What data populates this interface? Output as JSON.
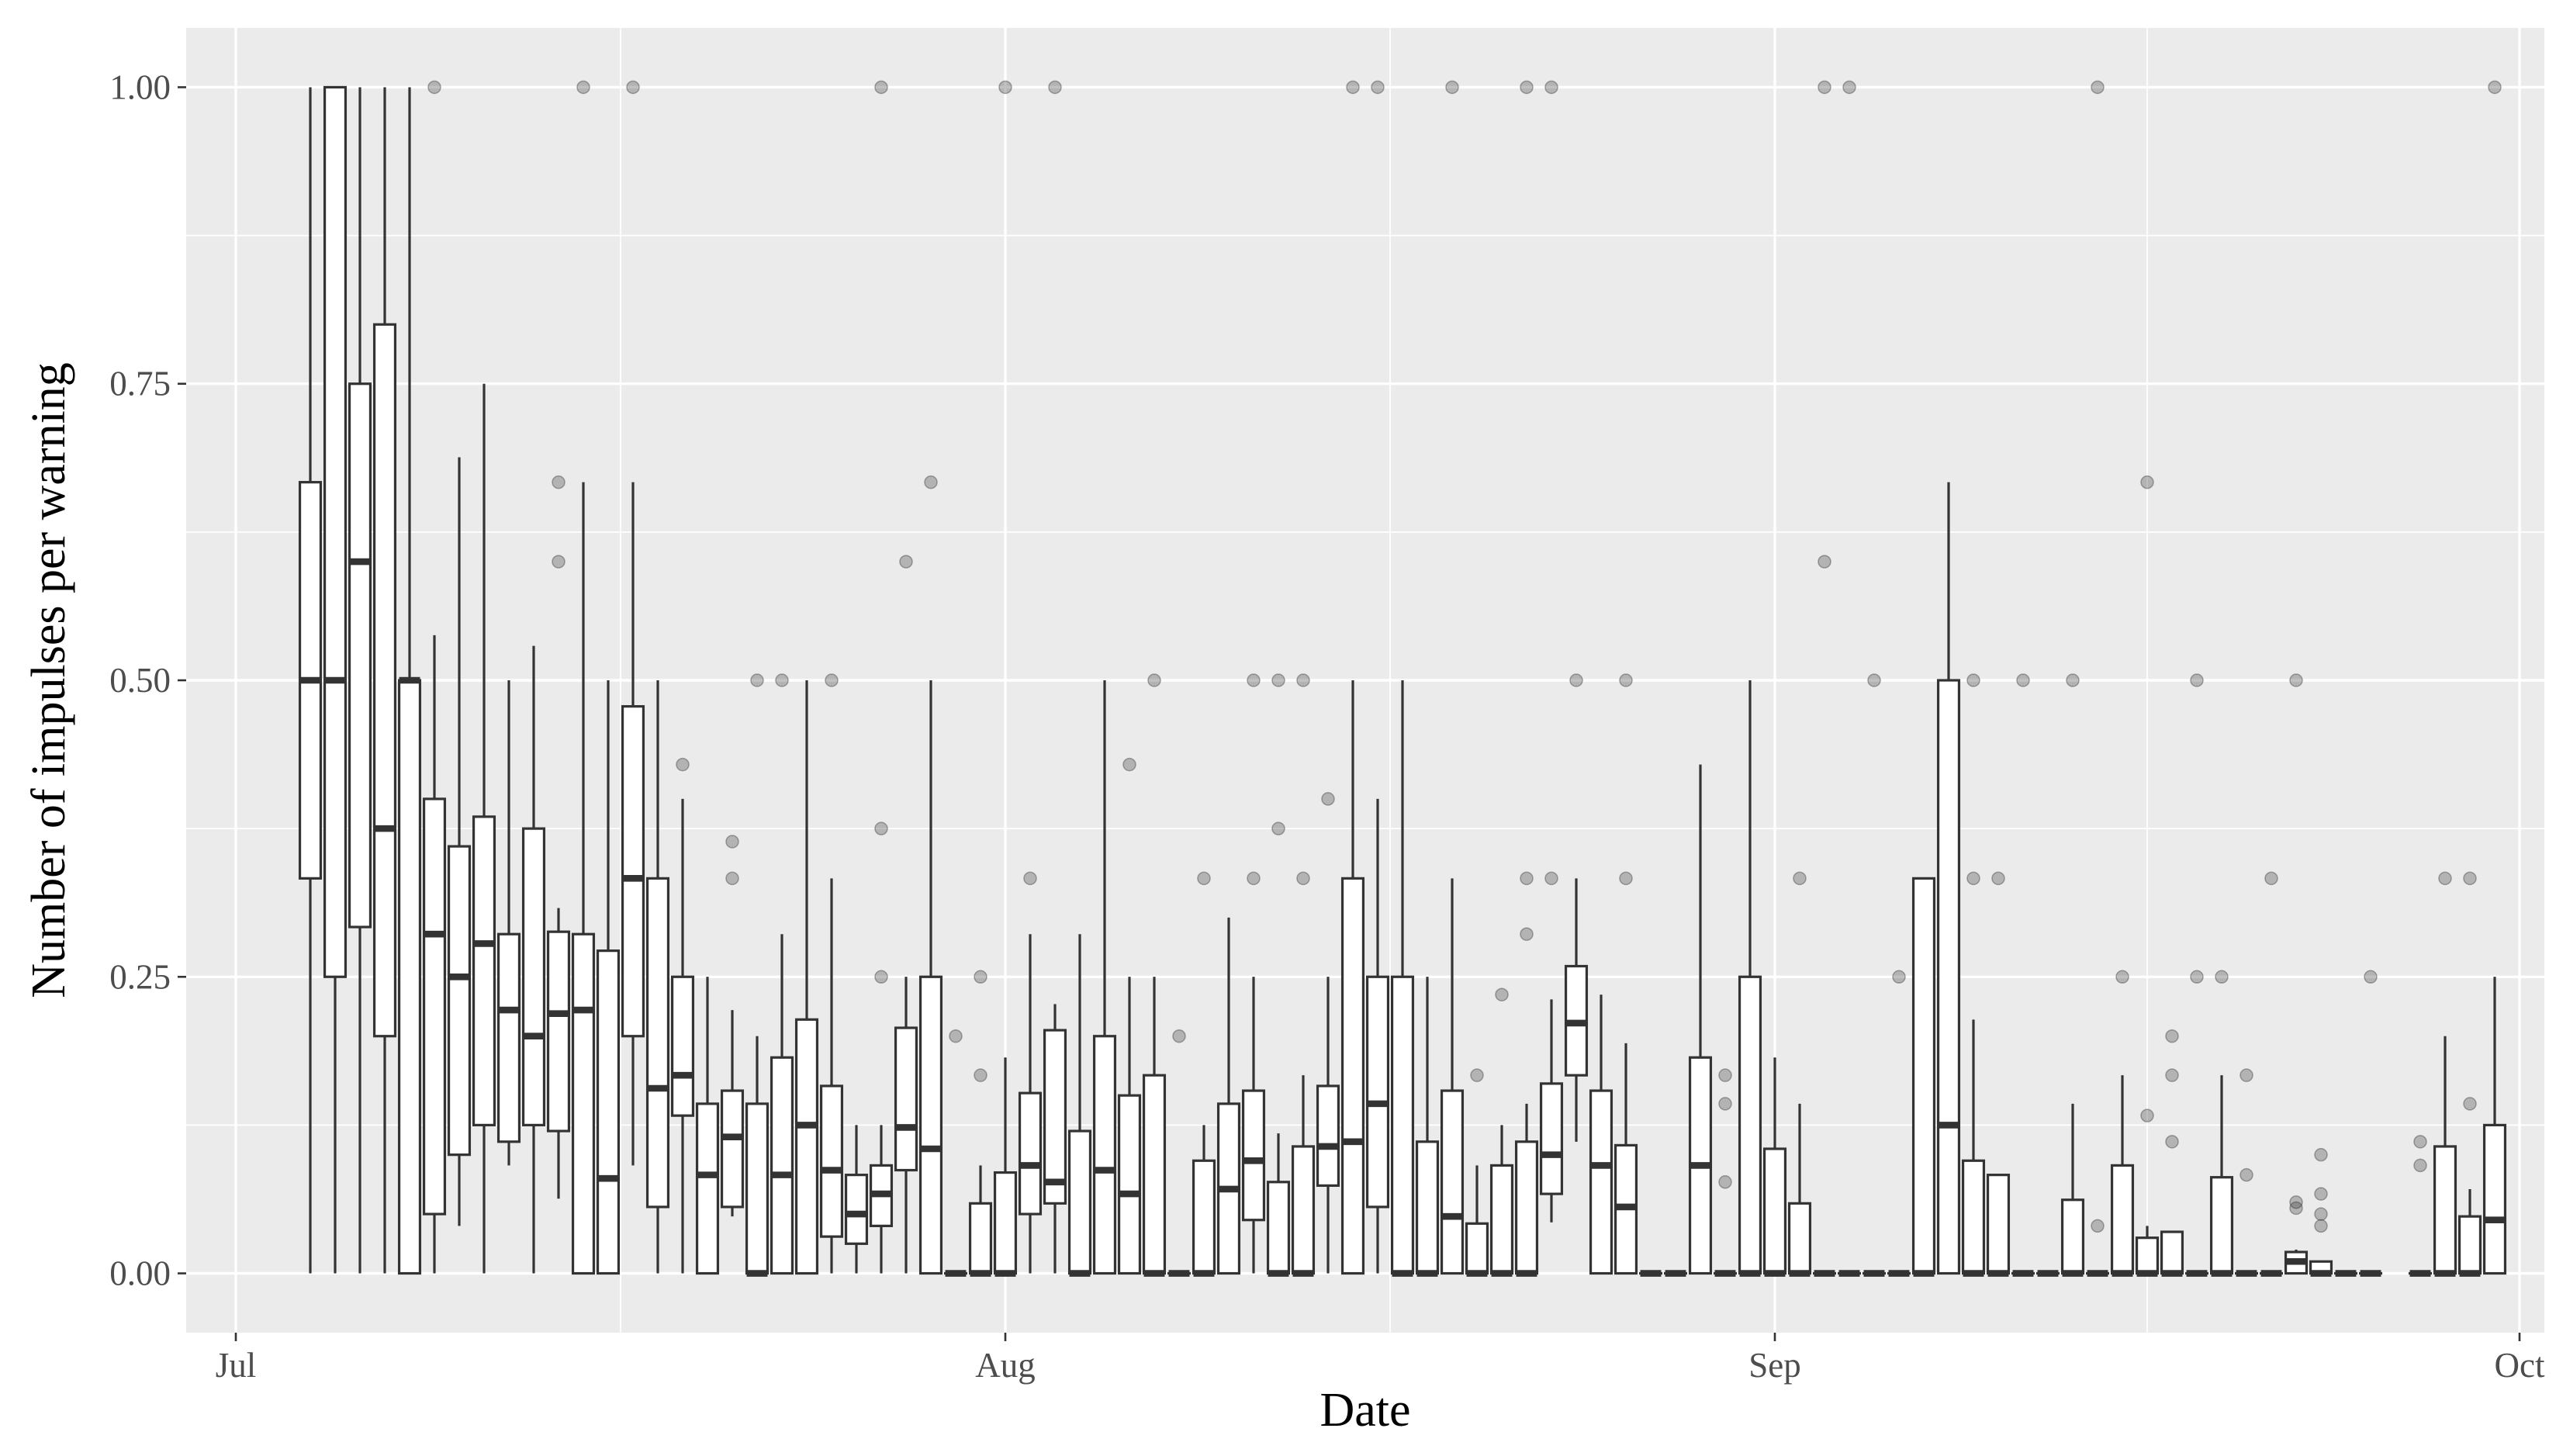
{
  "chart_data": {
    "type": "box",
    "xlabel": "Date",
    "ylabel": "Number of impulses per warning",
    "x_tick_labels": [
      "Jul",
      "Aug",
      "Sep",
      "Oct"
    ],
    "x_tick_dates": [
      "2020-07-01",
      "2020-08-01",
      "2020-09-01",
      "2020-10-01"
    ],
    "xlim": [
      "2020-06-29",
      "2020-10-02"
    ],
    "y_tick_labels": [
      "0.00",
      "0.25",
      "0.50",
      "0.75",
      "1.00"
    ],
    "y_ticks": [
      0,
      0.25,
      0.5,
      0.75,
      1.0
    ],
    "ylim": [
      -0.05,
      1.05
    ],
    "grid": true,
    "boxes": [
      {
        "date": "2020-07-04",
        "min": 0,
        "q1": 0.333,
        "median": 0.5,
        "q3": 0.667,
        "max": 1.0,
        "outliers": []
      },
      {
        "date": "2020-07-05",
        "min": 0,
        "q1": 0.25,
        "median": 0.5,
        "q3": 1.0,
        "max": 1.0,
        "outliers": []
      },
      {
        "date": "2020-07-06",
        "min": 0,
        "q1": 0.292,
        "median": 0.6,
        "q3": 0.75,
        "max": 1.0,
        "outliers": []
      },
      {
        "date": "2020-07-07",
        "min": 0,
        "q1": 0.2,
        "median": 0.375,
        "q3": 0.8,
        "max": 1.0,
        "outliers": []
      },
      {
        "date": "2020-07-08",
        "min": 0,
        "q1": 0,
        "median": 0.5,
        "q3": 0.5,
        "max": 1.0,
        "outliers": []
      },
      {
        "date": "2020-07-09",
        "min": 0,
        "q1": 0.05,
        "median": 0.286,
        "q3": 0.4,
        "max": 0.538,
        "outliers": [
          1.0
        ]
      },
      {
        "date": "2020-07-10",
        "min": 0.04,
        "q1": 0.1,
        "median": 0.25,
        "q3": 0.36,
        "max": 0.688,
        "outliers": []
      },
      {
        "date": "2020-07-11",
        "min": 0,
        "q1": 0.125,
        "median": 0.278,
        "q3": 0.385,
        "max": 0.75,
        "outliers": []
      },
      {
        "date": "2020-07-12",
        "min": 0.091,
        "q1": 0.111,
        "median": 0.222,
        "q3": 0.286,
        "max": 0.5,
        "outliers": []
      },
      {
        "date": "2020-07-13",
        "min": 0,
        "q1": 0.125,
        "median": 0.2,
        "q3": 0.375,
        "max": 0.529,
        "outliers": []
      },
      {
        "date": "2020-07-14",
        "min": 0.063,
        "q1": 0.12,
        "median": 0.219,
        "q3": 0.288,
        "max": 0.308,
        "outliers": [
          0.6,
          0.667
        ]
      },
      {
        "date": "2020-07-15",
        "min": 0,
        "q1": 0,
        "median": 0.222,
        "q3": 0.286,
        "max": 0.667,
        "outliers": [
          1.0
        ]
      },
      {
        "date": "2020-07-16",
        "min": 0,
        "q1": 0,
        "median": 0.08,
        "q3": 0.272,
        "max": 0.5,
        "outliers": []
      },
      {
        "date": "2020-07-17",
        "min": 0.091,
        "q1": 0.2,
        "median": 0.333,
        "q3": 0.478,
        "max": 0.667,
        "outliers": [
          1.0
        ]
      },
      {
        "date": "2020-07-18",
        "min": 0,
        "q1": 0.056,
        "median": 0.156,
        "q3": 0.333,
        "max": 0.5,
        "outliers": []
      },
      {
        "date": "2020-07-19",
        "min": 0,
        "q1": 0.133,
        "median": 0.167,
        "q3": 0.25,
        "max": 0.4,
        "outliers": [
          0.429
        ]
      },
      {
        "date": "2020-07-20",
        "min": 0,
        "q1": 0,
        "median": 0.083,
        "q3": 0.143,
        "max": 0.25,
        "outliers": []
      },
      {
        "date": "2020-07-21",
        "min": 0.048,
        "q1": 0.056,
        "median": 0.115,
        "q3": 0.154,
        "max": 0.222,
        "outliers": [
          0.333,
          0.364
        ]
      },
      {
        "date": "2020-07-22",
        "min": 0,
        "q1": 0,
        "median": 0,
        "q3": 0.143,
        "max": 0.2,
        "outliers": [
          0.5
        ]
      },
      {
        "date": "2020-07-23",
        "min": 0,
        "q1": 0,
        "median": 0.083,
        "q3": 0.182,
        "max": 0.286,
        "outliers": [
          0.5
        ]
      },
      {
        "date": "2020-07-24",
        "min": 0,
        "q1": 0,
        "median": 0.125,
        "q3": 0.214,
        "max": 0.5,
        "outliers": []
      },
      {
        "date": "2020-07-25",
        "min": 0,
        "q1": 0.031,
        "median": 0.087,
        "q3": 0.158,
        "max": 0.333,
        "outliers": [
          0.5
        ]
      },
      {
        "date": "2020-07-26",
        "min": 0,
        "q1": 0.025,
        "median": 0.05,
        "q3": 0.083,
        "max": 0.125,
        "outliers": []
      },
      {
        "date": "2020-07-27",
        "min": 0,
        "q1": 0.04,
        "median": 0.067,
        "q3": 0.091,
        "max": 0.125,
        "outliers": [
          0.25,
          0.375,
          1.0
        ]
      },
      {
        "date": "2020-07-28",
        "min": 0,
        "q1": 0.087,
        "median": 0.123,
        "q3": 0.207,
        "max": 0.25,
        "outliers": [
          0.6
        ]
      },
      {
        "date": "2020-07-29",
        "min": 0,
        "q1": 0,
        "median": 0.105,
        "q3": 0.25,
        "max": 0.5,
        "outliers": [
          0.667
        ]
      },
      {
        "date": "2020-07-30",
        "min": 0,
        "q1": 0,
        "median": 0,
        "q3": 0,
        "max": 0,
        "outliers": [
          0.2
        ]
      },
      {
        "date": "2020-07-31",
        "min": 0,
        "q1": 0,
        "median": 0,
        "q3": 0.059,
        "max": 0.091,
        "outliers": [
          0.167,
          0.25
        ]
      },
      {
        "date": "2020-08-01",
        "min": 0,
        "q1": 0,
        "median": 0,
        "q3": 0.085,
        "max": 0.182,
        "outliers": [
          1.0
        ]
      },
      {
        "date": "2020-08-02",
        "min": 0,
        "q1": 0.05,
        "median": 0.091,
        "q3": 0.152,
        "max": 0.286,
        "outliers": [
          0.333
        ]
      },
      {
        "date": "2020-08-03",
        "min": 0,
        "q1": 0.059,
        "median": 0.077,
        "q3": 0.205,
        "max": 0.227,
        "outliers": [
          1.0
        ]
      },
      {
        "date": "2020-08-04",
        "min": 0,
        "q1": 0,
        "median": 0,
        "q3": 0.12,
        "max": 0.286,
        "outliers": []
      },
      {
        "date": "2020-08-05",
        "min": 0,
        "q1": 0,
        "median": 0.087,
        "q3": 0.2,
        "max": 0.5,
        "outliers": []
      },
      {
        "date": "2020-08-06",
        "min": 0,
        "q1": 0,
        "median": 0.067,
        "q3": 0.15,
        "max": 0.25,
        "outliers": [
          0.429
        ]
      },
      {
        "date": "2020-08-07",
        "min": 0,
        "q1": 0,
        "median": 0,
        "q3": 0.167,
        "max": 0.25,
        "outliers": [
          0.5
        ]
      },
      {
        "date": "2020-08-08",
        "min": 0,
        "q1": 0,
        "median": 0,
        "q3": 0,
        "max": 0,
        "outliers": [
          0.2
        ]
      },
      {
        "date": "2020-08-09",
        "min": 0,
        "q1": 0,
        "median": 0,
        "q3": 0.095,
        "max": 0.125,
        "outliers": [
          0.333
        ]
      },
      {
        "date": "2020-08-10",
        "min": 0,
        "q1": 0,
        "median": 0.071,
        "q3": 0.143,
        "max": 0.3,
        "outliers": []
      },
      {
        "date": "2020-08-11",
        "min": 0,
        "q1": 0.045,
        "median": 0.095,
        "q3": 0.154,
        "max": 0.25,
        "outliers": [
          0.333,
          0.5
        ]
      },
      {
        "date": "2020-08-12",
        "min": 0,
        "q1": 0,
        "median": 0,
        "q3": 0.077,
        "max": 0.118,
        "outliers": [
          0.375,
          0.5
        ]
      },
      {
        "date": "2020-08-13",
        "min": 0,
        "q1": 0,
        "median": 0,
        "q3": 0.107,
        "max": 0.167,
        "outliers": [
          0.333,
          0.5
        ]
      },
      {
        "date": "2020-08-14",
        "min": 0,
        "q1": 0.074,
        "median": 0.107,
        "q3": 0.158,
        "max": 0.25,
        "outliers": [
          0.4
        ]
      },
      {
        "date": "2020-08-15",
        "min": 0,
        "q1": 0,
        "median": 0.111,
        "q3": 0.333,
        "max": 0.5,
        "outliers": [
          1.0
        ]
      },
      {
        "date": "2020-08-16",
        "min": 0,
        "q1": 0.056,
        "median": 0.143,
        "q3": 0.25,
        "max": 0.4,
        "outliers": [
          1.0
        ]
      },
      {
        "date": "2020-08-17",
        "min": 0,
        "q1": 0,
        "median": 0,
        "q3": 0.25,
        "max": 0.5,
        "outliers": []
      },
      {
        "date": "2020-08-18",
        "min": 0,
        "q1": 0,
        "median": 0,
        "q3": 0.111,
        "max": 0.25,
        "outliers": []
      },
      {
        "date": "2020-08-19",
        "min": 0,
        "q1": 0,
        "median": 0.048,
        "q3": 0.154,
        "max": 0.333,
        "outliers": [
          1.0
        ]
      },
      {
        "date": "2020-08-20",
        "min": 0,
        "q1": 0,
        "median": 0,
        "q3": 0.042,
        "max": 0.091,
        "outliers": [
          0.167
        ]
      },
      {
        "date": "2020-08-21",
        "min": 0,
        "q1": 0,
        "median": 0,
        "q3": 0.091,
        "max": 0.125,
        "outliers": [
          0.235
        ]
      },
      {
        "date": "2020-08-22",
        "min": 0,
        "q1": 0,
        "median": 0,
        "q3": 0.111,
        "max": 0.143,
        "outliers": [
          0.286,
          0.333,
          1.0
        ]
      },
      {
        "date": "2020-08-23",
        "min": 0.043,
        "q1": 0.067,
        "median": 0.1,
        "q3": 0.16,
        "max": 0.231,
        "outliers": [
          0.333,
          1.0
        ]
      },
      {
        "date": "2020-08-24",
        "min": 0.111,
        "q1": 0.167,
        "median": 0.211,
        "q3": 0.259,
        "max": 0.333,
        "outliers": [
          0.5
        ]
      },
      {
        "date": "2020-08-25",
        "min": 0,
        "q1": 0,
        "median": 0.091,
        "q3": 0.154,
        "max": 0.235,
        "outliers": []
      },
      {
        "date": "2020-08-26",
        "min": 0,
        "q1": 0,
        "median": 0.056,
        "q3": 0.108,
        "max": 0.194,
        "outliers": [
          0.333,
          0.5
        ]
      },
      {
        "date": "2020-08-27",
        "min": 0,
        "q1": 0,
        "median": 0,
        "q3": 0,
        "max": 0,
        "outliers": []
      },
      {
        "date": "2020-08-28",
        "min": 0,
        "q1": 0,
        "median": 0,
        "q3": 0,
        "max": 0,
        "outliers": []
      },
      {
        "date": "2020-08-29",
        "min": 0,
        "q1": 0,
        "median": 0.091,
        "q3": 0.182,
        "max": 0.429,
        "outliers": []
      },
      {
        "date": "2020-08-30",
        "min": 0,
        "q1": 0,
        "median": 0,
        "q3": 0,
        "max": 0,
        "outliers": [
          0.077,
          0.143,
          0.167
        ]
      },
      {
        "date": "2020-08-31",
        "min": 0,
        "q1": 0,
        "median": 0,
        "q3": 0.25,
        "max": 0.5,
        "outliers": []
      },
      {
        "date": "2020-09-01",
        "min": 0,
        "q1": 0,
        "median": 0,
        "q3": 0.105,
        "max": 0.182,
        "outliers": []
      },
      {
        "date": "2020-09-02",
        "min": 0,
        "q1": 0,
        "median": 0,
        "q3": 0.059,
        "max": 0.143,
        "outliers": [
          0.333
        ]
      },
      {
        "date": "2020-09-03",
        "min": 0,
        "q1": 0,
        "median": 0,
        "q3": 0,
        "max": 0,
        "outliers": [
          0.6,
          1.0
        ]
      },
      {
        "date": "2020-09-04",
        "min": 0,
        "q1": 0,
        "median": 0,
        "q3": 0,
        "max": 0,
        "outliers": [
          1.0
        ]
      },
      {
        "date": "2020-09-05",
        "min": 0,
        "q1": 0,
        "median": 0,
        "q3": 0,
        "max": 0,
        "outliers": [
          0.5
        ]
      },
      {
        "date": "2020-09-06",
        "min": 0,
        "q1": 0,
        "median": 0,
        "q3": 0,
        "max": 0,
        "outliers": [
          0.25
        ]
      },
      {
        "date": "2020-09-07",
        "min": 0,
        "q1": 0,
        "median": 0,
        "q3": 0.333,
        "max": 0.333,
        "outliers": []
      },
      {
        "date": "2020-09-08",
        "min": 0,
        "q1": 0,
        "median": 0.125,
        "q3": 0.5,
        "max": 0.667,
        "outliers": []
      },
      {
        "date": "2020-09-09",
        "min": 0,
        "q1": 0,
        "median": 0,
        "q3": 0.095,
        "max": 0.214,
        "outliers": [
          0.333,
          0.5
        ]
      },
      {
        "date": "2020-09-10",
        "min": 0,
        "q1": 0,
        "median": 0,
        "q3": 0.083,
        "max": 0.083,
        "outliers": [
          0.333
        ]
      },
      {
        "date": "2020-09-11",
        "min": 0,
        "q1": 0,
        "median": 0,
        "q3": 0,
        "max": 0,
        "outliers": [
          0.5
        ]
      },
      {
        "date": "2020-09-12",
        "min": 0,
        "q1": 0,
        "median": 0,
        "q3": 0,
        "max": 0,
        "outliers": []
      },
      {
        "date": "2020-09-13",
        "min": 0,
        "q1": 0,
        "median": 0,
        "q3": 0.062,
        "max": 0.143,
        "outliers": [
          0.5
        ]
      },
      {
        "date": "2020-09-14",
        "min": 0,
        "q1": 0,
        "median": 0,
        "q3": 0,
        "max": 0,
        "outliers": [
          0.04,
          1.0
        ]
      },
      {
        "date": "2020-09-15",
        "min": 0,
        "q1": 0,
        "median": 0,
        "q3": 0.091,
        "max": 0.167,
        "outliers": [
          0.25
        ]
      },
      {
        "date": "2020-09-16",
        "min": 0,
        "q1": 0,
        "median": 0,
        "q3": 0.03,
        "max": 0.04,
        "outliers": [
          0.133,
          0.667
        ]
      },
      {
        "date": "2020-09-17",
        "min": 0,
        "q1": 0,
        "median": 0,
        "q3": 0.035,
        "max": 0.035,
        "outliers": [
          0.111,
          0.167,
          0.2
        ]
      },
      {
        "date": "2020-09-18",
        "min": 0,
        "q1": 0,
        "median": 0,
        "q3": 0,
        "max": 0,
        "outliers": [
          0.25,
          0.5
        ]
      },
      {
        "date": "2020-09-19",
        "min": 0,
        "q1": 0,
        "median": 0,
        "q3": 0.081,
        "max": 0.167,
        "outliers": [
          0.25
        ]
      },
      {
        "date": "2020-09-20",
        "min": 0,
        "q1": 0,
        "median": 0,
        "q3": 0,
        "max": 0,
        "outliers": [
          0.083,
          0.167
        ]
      },
      {
        "date": "2020-09-21",
        "min": 0,
        "q1": 0,
        "median": 0,
        "q3": 0,
        "max": 0,
        "outliers": [
          0.333
        ]
      },
      {
        "date": "2020-09-22",
        "min": 0,
        "q1": 0,
        "median": 0.01,
        "q3": 0.018,
        "max": 0.02,
        "outliers": [
          0.055,
          0.06,
          0.5
        ]
      },
      {
        "date": "2020-09-23",
        "min": 0,
        "q1": 0,
        "median": 0,
        "q3": 0.01,
        "max": 0.01,
        "outliers": [
          0.04,
          0.05,
          0.067,
          0.1
        ]
      },
      {
        "date": "2020-09-24",
        "min": 0,
        "q1": 0,
        "median": 0,
        "q3": 0,
        "max": 0,
        "outliers": []
      },
      {
        "date": "2020-09-25",
        "min": 0,
        "q1": 0,
        "median": 0,
        "q3": 0,
        "max": 0,
        "outliers": [
          0.25
        ]
      },
      {
        "date": "2020-09-27",
        "min": 0,
        "q1": 0,
        "median": 0,
        "q3": 0,
        "max": 0,
        "outliers": [
          0.091,
          0.111
        ]
      },
      {
        "date": "2020-09-28",
        "min": 0,
        "q1": 0,
        "median": 0,
        "q3": 0.107,
        "max": 0.2,
        "outliers": [
          0.333
        ]
      },
      {
        "date": "2020-09-29",
        "min": 0,
        "q1": 0,
        "median": 0,
        "q3": 0.048,
        "max": 0.071,
        "outliers": [
          0.143,
          0.333
        ]
      },
      {
        "date": "2020-09-30",
        "min": 0,
        "q1": 0,
        "median": 0.045,
        "q3": 0.125,
        "max": 0.25,
        "outliers": [
          1.0
        ]
      }
    ]
  }
}
